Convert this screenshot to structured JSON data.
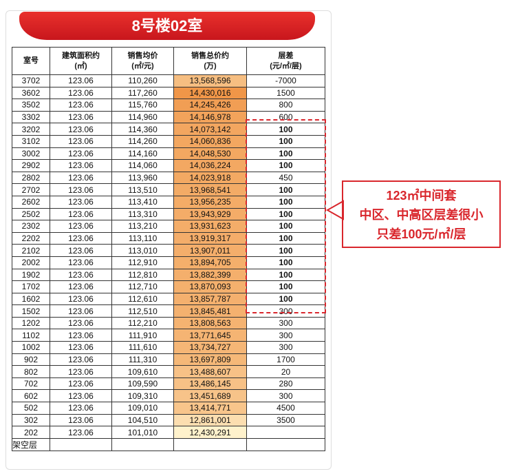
{
  "header": {
    "title": "8号楼02室"
  },
  "table": {
    "columns": [
      [
        "室号"
      ],
      [
        "建筑面积约",
        "(㎡)"
      ],
      [
        "销售均价",
        "(㎡/元)"
      ],
      [
        "销售总价约",
        "(万)"
      ],
      [
        "层差",
        "(元/㎡/层)"
      ]
    ],
    "rows": [
      [
        "3702",
        "123.06",
        "110,260",
        "13,568,596",
        "-7000"
      ],
      [
        "3602",
        "123.06",
        "117,260",
        "14,430,016",
        "1500"
      ],
      [
        "3502",
        "123.06",
        "115,760",
        "14,245,426",
        "800"
      ],
      [
        "3302",
        "123.06",
        "114,960",
        "14,146,978",
        "600"
      ],
      [
        "3202",
        "123.06",
        "114,360",
        "14,073,142",
        "100"
      ],
      [
        "3102",
        "123.06",
        "114,260",
        "14,060,836",
        "100"
      ],
      [
        "3002",
        "123.06",
        "114,160",
        "14,048,530",
        "100"
      ],
      [
        "2902",
        "123.06",
        "114,060",
        "14,036,224",
        "100"
      ],
      [
        "2802",
        "123.06",
        "113,960",
        "14,023,918",
        "450"
      ],
      [
        "2702",
        "123.06",
        "113,510",
        "13,968,541",
        "100"
      ],
      [
        "2602",
        "123.06",
        "113,410",
        "13,956,235",
        "100"
      ],
      [
        "2502",
        "123.06",
        "113,310",
        "13,943,929",
        "100"
      ],
      [
        "2302",
        "123.06",
        "113,210",
        "13,931,623",
        "100"
      ],
      [
        "2202",
        "123.06",
        "113,110",
        "13,919,317",
        "100"
      ],
      [
        "2102",
        "123.06",
        "113,010",
        "13,907,011",
        "100"
      ],
      [
        "2002",
        "123.06",
        "112,910",
        "13,894,705",
        "100"
      ],
      [
        "1902",
        "123.06",
        "112,810",
        "13,882,399",
        "100"
      ],
      [
        "1702",
        "123.06",
        "112,710",
        "13,870,093",
        "100"
      ],
      [
        "1602",
        "123.06",
        "112,610",
        "13,857,787",
        "100"
      ],
      [
        "1502",
        "123.06",
        "112,510",
        "13,845,481",
        "300"
      ],
      [
        "1202",
        "123.06",
        "112,210",
        "13,808,563",
        "300"
      ],
      [
        "1102",
        "123.06",
        "111,910",
        "13,771,645",
        "300"
      ],
      [
        "1002",
        "123.06",
        "111,610",
        "13,734,727",
        "300"
      ],
      [
        "902",
        "123.06",
        "111,310",
        "13,697,809",
        "1700"
      ],
      [
        "802",
        "123.06",
        "109,610",
        "13,488,607",
        "20"
      ],
      [
        "702",
        "123.06",
        "109,590",
        "13,486,145",
        "280"
      ],
      [
        "602",
        "123.06",
        "109,310",
        "13,451,689",
        "300"
      ],
      [
        "502",
        "123.06",
        "109,010",
        "13,414,771",
        "4500"
      ],
      [
        "302",
        "123.06",
        "104,510",
        "12,861,001",
        "3500"
      ],
      [
        "202",
        "123.06",
        "101,010",
        "12,430,291"
      ],
      [
        "架空层"
      ]
    ]
  },
  "callout": {
    "lines": [
      "123㎡中间套",
      "中区、中高区层差很小",
      "只差100元/㎡/层"
    ]
  }
}
